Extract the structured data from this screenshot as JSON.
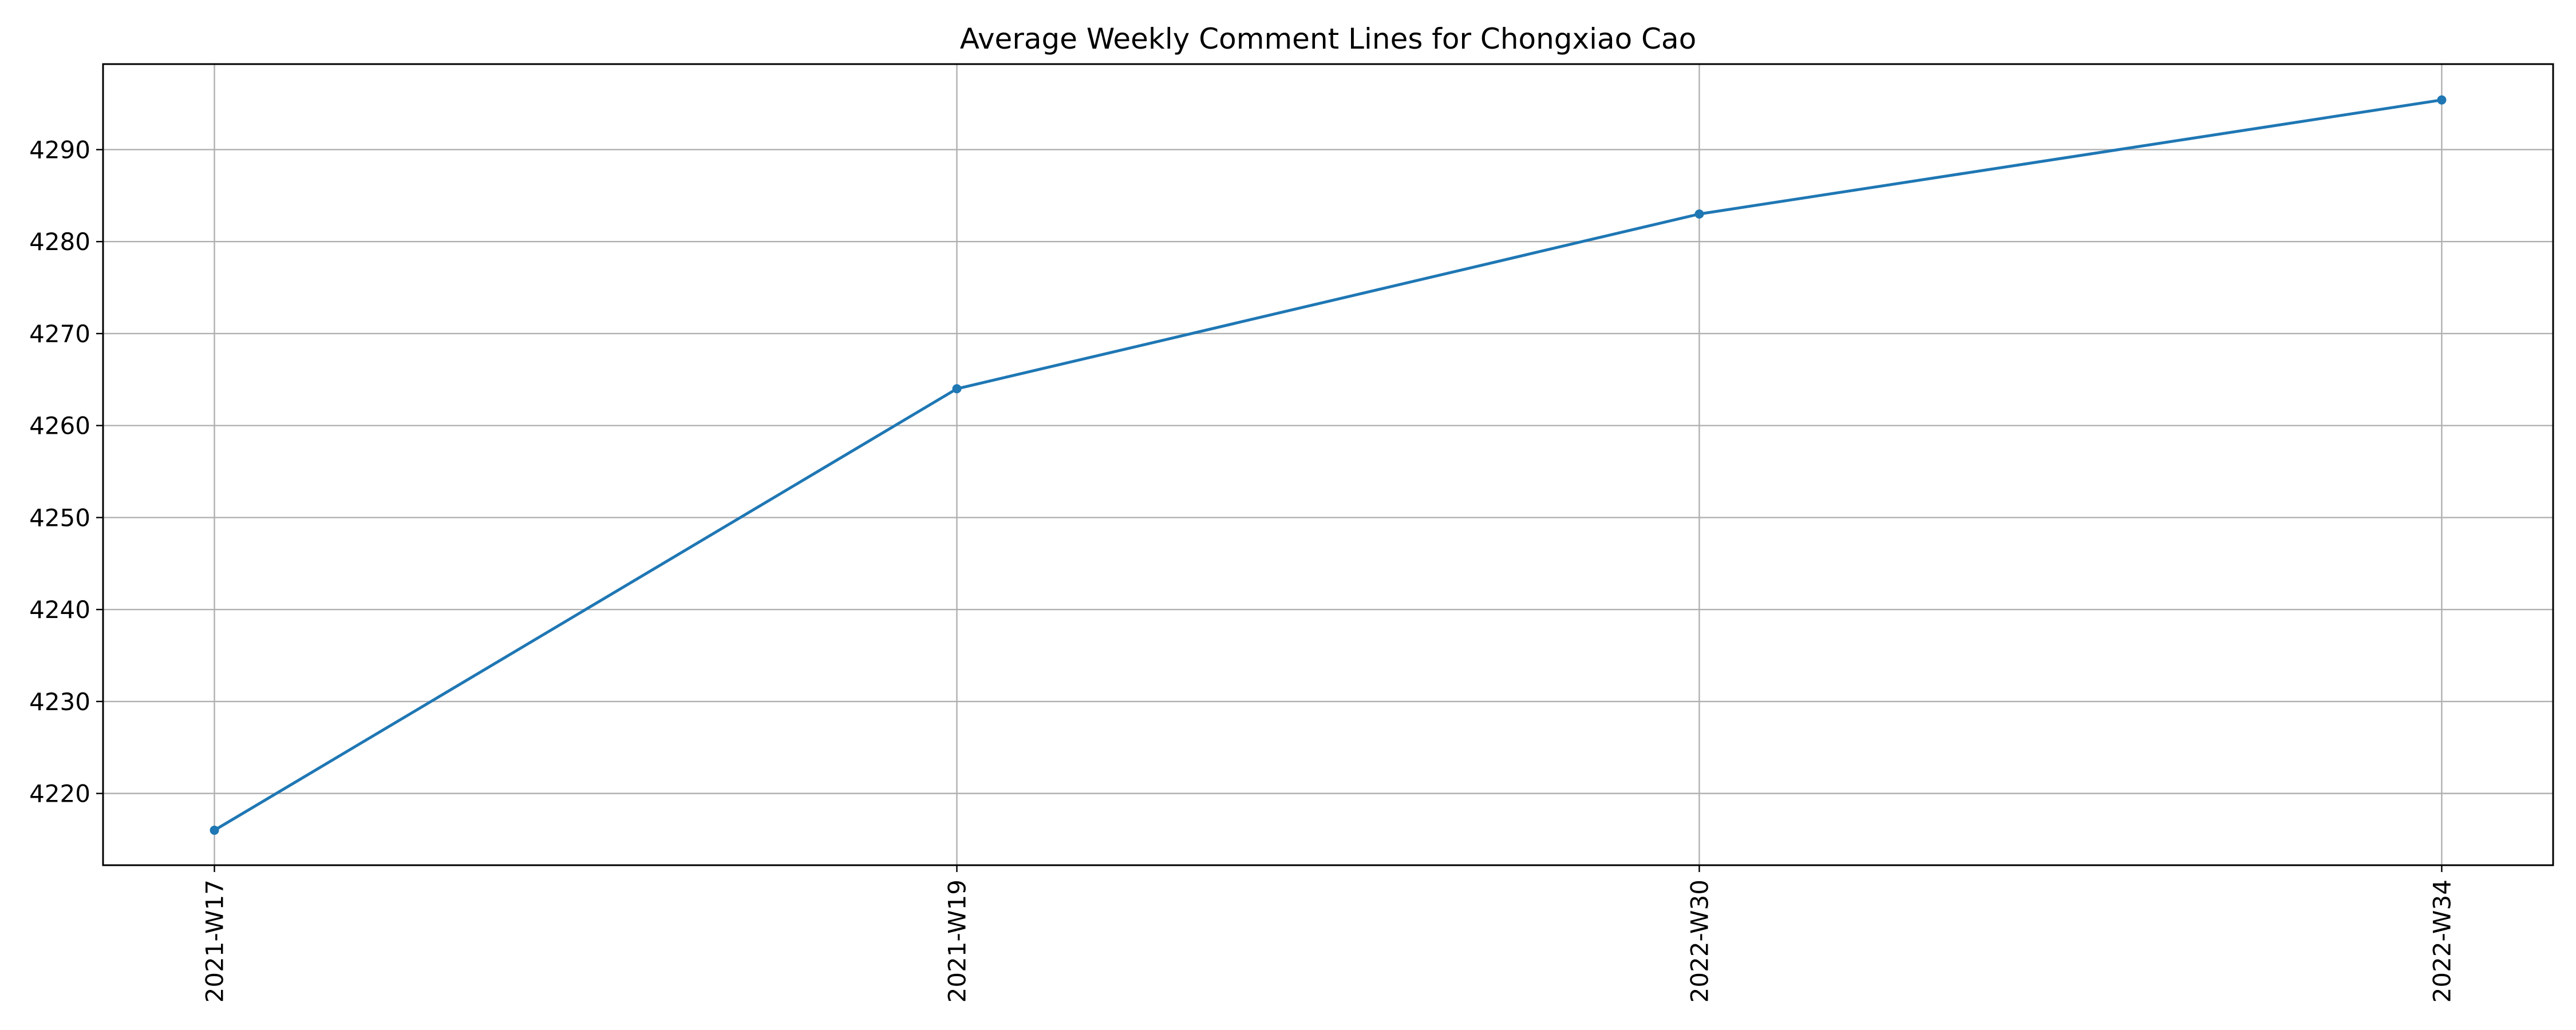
{
  "chart_data": {
    "type": "line",
    "title": "Average Weekly Comment Lines for Chongxiao Cao",
    "xlabel": "",
    "ylabel": "",
    "categories": [
      "2021-W17",
      "2021-W19",
      "2022-W30",
      "2022-W34"
    ],
    "series": [
      {
        "values": [
          4216,
          4264,
          4283,
          4295.4
        ],
        "color": "#1f77b4",
        "marker": "circle"
      }
    ],
    "yticks": [
      4220,
      4230,
      4240,
      4250,
      4260,
      4270,
      4280,
      4290
    ],
    "ylim": [
      4212.2,
      4299.3
    ],
    "grid": true,
    "legend": "none",
    "xtick_rotation": "vertical"
  }
}
